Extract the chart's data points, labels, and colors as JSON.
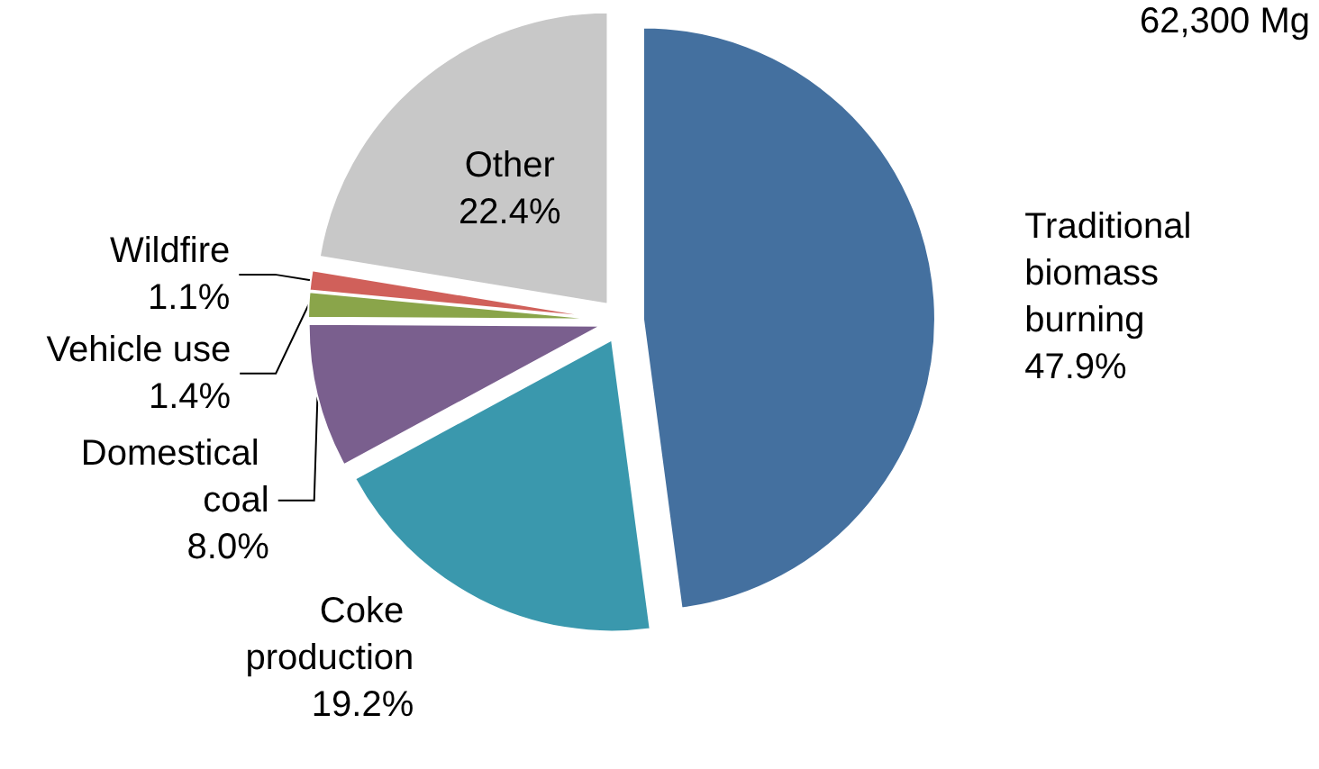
{
  "chart_data": {
    "type": "pie",
    "annotations": [
      "62,300 Mg"
    ],
    "categories": [
      "Traditional biomass burning",
      "Coke production",
      "Domestical coal",
      "Vehicle use",
      "Wildfire",
      "Other"
    ],
    "values": [
      47.9,
      19.2,
      8.0,
      1.4,
      1.1,
      22.4
    ],
    "value_labels": [
      "47.9%",
      "19.2%",
      "8.0%",
      "1.4%",
      "1.1%",
      "22.4%"
    ],
    "colors": [
      "#44709f",
      "#3a98ad",
      "#7a5f8e",
      "#8aa54a",
      "#d0605a",
      "#c8c8c8"
    ],
    "legend": false
  }
}
